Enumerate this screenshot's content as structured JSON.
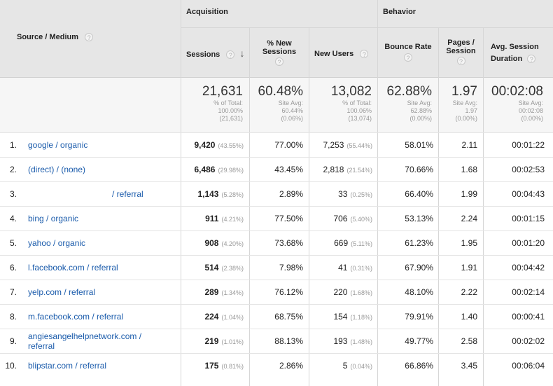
{
  "header": {
    "source_medium": "Source / Medium",
    "acquisition": "Acquisition",
    "behavior": "Behavior",
    "cols": {
      "sessions": "Sessions",
      "new_sessions_1": "% New",
      "new_sessions_2": "Sessions",
      "new_users": "New Users",
      "bounce_rate": "Bounce Rate",
      "pages_1": "Pages /",
      "pages_2": "Session",
      "duration_1": "Avg. Session",
      "duration_2": "Duration"
    },
    "help": "?",
    "sort_arrow": "↓"
  },
  "totals": {
    "sessions": {
      "value": "21,631",
      "l1": "% of Total:",
      "l2": "100.00%",
      "l3": "(21,631)"
    },
    "new_sessions": {
      "value": "60.48%",
      "l1": "Site Avg:",
      "l2": "60.44%",
      "l3": "(0.06%)"
    },
    "new_users": {
      "value": "13,082",
      "l1": "% of Total:",
      "l2": "100.06%",
      "l3": "(13,074)"
    },
    "bounce_rate": {
      "value": "62.88%",
      "l1": "Site Avg:",
      "l2": "62.88%",
      "l3": "(0.00%)"
    },
    "pages": {
      "value": "1.97",
      "l1": "Site Avg:",
      "l2": "1.97",
      "l3": "(0.00%)"
    },
    "duration": {
      "value": "00:02:08",
      "l1": "Site Avg:",
      "l2": "00:02:08",
      "l3": "(0.00%)"
    }
  },
  "rows": [
    {
      "rank": "1.",
      "src1": "google / organic",
      "src2": "",
      "sessions": "9,420",
      "sessions_pct": "(43.55%)",
      "new_sessions": "77.00%",
      "new_users": "7,253",
      "new_users_pct": "(55.44%)",
      "bounce": "58.01%",
      "pages": "2.11",
      "duration": "00:01:22"
    },
    {
      "rank": "2.",
      "src1": "(direct) / (none)",
      "src2": "",
      "sessions": "6,486",
      "sessions_pct": "(29.98%)",
      "new_sessions": "43.45%",
      "new_users": "2,818",
      "new_users_pct": "(21.54%)",
      "bounce": "70.66%",
      "pages": "1.68",
      "duration": "00:02:53"
    },
    {
      "rank": "3.",
      "src1": "/ referral",
      "src2": "",
      "sessions": "1,143",
      "sessions_pct": "(5.28%)",
      "new_sessions": "2.89%",
      "new_users": "33",
      "new_users_pct": "(0.25%)",
      "bounce": "66.40%",
      "pages": "1.99",
      "duration": "00:04:43"
    },
    {
      "rank": "4.",
      "src1": "bing / organic",
      "src2": "",
      "sessions": "911",
      "sessions_pct": "(4.21%)",
      "new_sessions": "77.50%",
      "new_users": "706",
      "new_users_pct": "(5.40%)",
      "bounce": "53.13%",
      "pages": "2.24",
      "duration": "00:01:15"
    },
    {
      "rank": "5.",
      "src1": "yahoo / organic",
      "src2": "",
      "sessions": "908",
      "sessions_pct": "(4.20%)",
      "new_sessions": "73.68%",
      "new_users": "669",
      "new_users_pct": "(5.11%)",
      "bounce": "61.23%",
      "pages": "1.95",
      "duration": "00:01:20"
    },
    {
      "rank": "6.",
      "src1": "l.facebook.com / referral",
      "src2": "",
      "sessions": "514",
      "sessions_pct": "(2.38%)",
      "new_sessions": "7.98%",
      "new_users": "41",
      "new_users_pct": "(0.31%)",
      "bounce": "67.90%",
      "pages": "1.91",
      "duration": "00:04:42"
    },
    {
      "rank": "7.",
      "src1": "yelp.com / referral",
      "src2": "",
      "sessions": "289",
      "sessions_pct": "(1.34%)",
      "new_sessions": "76.12%",
      "new_users": "220",
      "new_users_pct": "(1.68%)",
      "bounce": "48.10%",
      "pages": "2.22",
      "duration": "00:02:14"
    },
    {
      "rank": "8.",
      "src1": "m.facebook.com / referral",
      "src2": "",
      "sessions": "224",
      "sessions_pct": "(1.04%)",
      "new_sessions": "68.75%",
      "new_users": "154",
      "new_users_pct": "(1.18%)",
      "bounce": "79.91%",
      "pages": "1.40",
      "duration": "00:00:41"
    },
    {
      "rank": "9.",
      "src1": "angiesangelhelpnetwork.com /",
      "src2": "referral",
      "sessions": "219",
      "sessions_pct": "(1.01%)",
      "new_sessions": "88.13%",
      "new_users": "193",
      "new_users_pct": "(1.48%)",
      "bounce": "49.77%",
      "pages": "2.58",
      "duration": "00:02:02"
    },
    {
      "rank": "10.",
      "src1": "blipstar.com / referral",
      "src2": "",
      "sessions": "175",
      "sessions_pct": "(0.81%)",
      "new_sessions": "2.86%",
      "new_users": "5",
      "new_users_pct": "(0.04%)",
      "bounce": "66.86%",
      "pages": "3.45",
      "duration": "00:06:04"
    }
  ]
}
